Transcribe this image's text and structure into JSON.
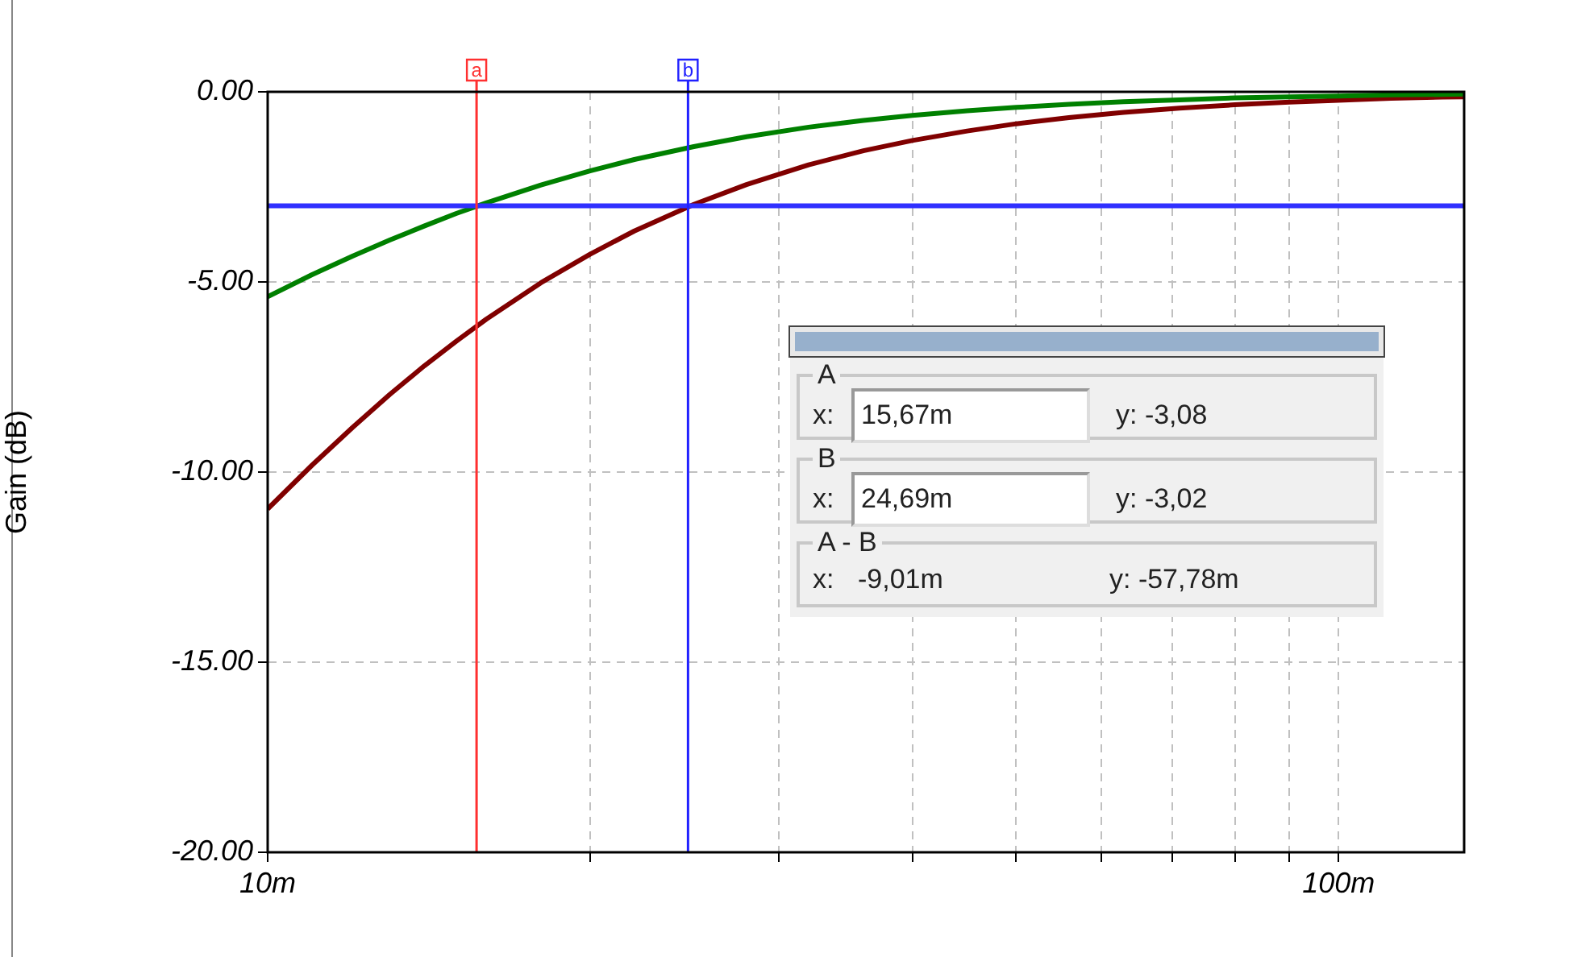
{
  "chart_data": {
    "type": "line",
    "ylabel": "Gain (dB)",
    "log": "x",
    "x": [
      10,
      11,
      12,
      13,
      14,
      15,
      16,
      18,
      20,
      22,
      25,
      28,
      32,
      36,
      40,
      45,
      50,
      56,
      63,
      71,
      80,
      90,
      100,
      112,
      125,
      131
    ],
    "series": [
      {
        "color": "#008000",
        "values": [
          -5.39,
          -4.81,
          -4.32,
          -3.9,
          -3.53,
          -3.2,
          -2.92,
          -2.45,
          -2.08,
          -1.78,
          -1.44,
          -1.18,
          -0.93,
          -0.75,
          -0.62,
          -0.5,
          -0.41,
          -0.33,
          -0.26,
          -0.21,
          -0.16,
          -0.13,
          -0.11,
          -0.08,
          -0.07,
          -0.06
        ]
      },
      {
        "color": "#800000",
        "values": [
          -10.97,
          -9.82,
          -8.83,
          -7.96,
          -7.21,
          -6.56,
          -5.98,
          -5.02,
          -4.27,
          -3.66,
          -2.96,
          -2.44,
          -1.92,
          -1.55,
          -1.28,
          -1.03,
          -0.84,
          -0.68,
          -0.54,
          -0.43,
          -0.34,
          -0.27,
          -0.22,
          -0.17,
          -0.14,
          -0.13
        ]
      }
    ],
    "xlim": [
      10,
      131
    ],
    "xticks": [
      {
        "value": 10,
        "label": "10m"
      },
      {
        "value": 20,
        "label": null
      },
      {
        "value": 30,
        "label": null
      },
      {
        "value": 40,
        "label": null
      },
      {
        "value": 50,
        "label": null
      },
      {
        "value": 60,
        "label": null
      },
      {
        "value": 70,
        "label": null
      },
      {
        "value": 80,
        "label": null
      },
      {
        "value": 90,
        "label": null
      },
      {
        "value": 100,
        "label": "100m"
      }
    ],
    "ylim": [
      -20,
      0
    ],
    "yticks": [
      {
        "value": -20,
        "label": "-20.00"
      },
      {
        "value": -15,
        "label": "-15.00"
      },
      {
        "value": -10,
        "label": "-10.00"
      },
      {
        "value": -5,
        "label": "-5.00"
      },
      {
        "value": 0,
        "label": "0.00"
      }
    ],
    "grid": true,
    "legend": false,
    "marker": "none",
    "line_style": "solid",
    "ref_lines": [
      {
        "axis": "y",
        "value": -3,
        "label": null,
        "color": "#3030ff"
      },
      {
        "axis": "x",
        "value": 15.67,
        "label": "a",
        "color": "#ff3030"
      },
      {
        "axis": "x",
        "value": 24.69,
        "label": "b",
        "color": "#2020ff"
      }
    ],
    "annotations": [
      "A",
      "x:",
      "15,67m",
      "y: -3,08",
      "B",
      "x:",
      "24,69m",
      "y: -3,02",
      "A - B",
      "x:",
      "-9,01m",
      "y: -57,78m"
    ]
  }
}
